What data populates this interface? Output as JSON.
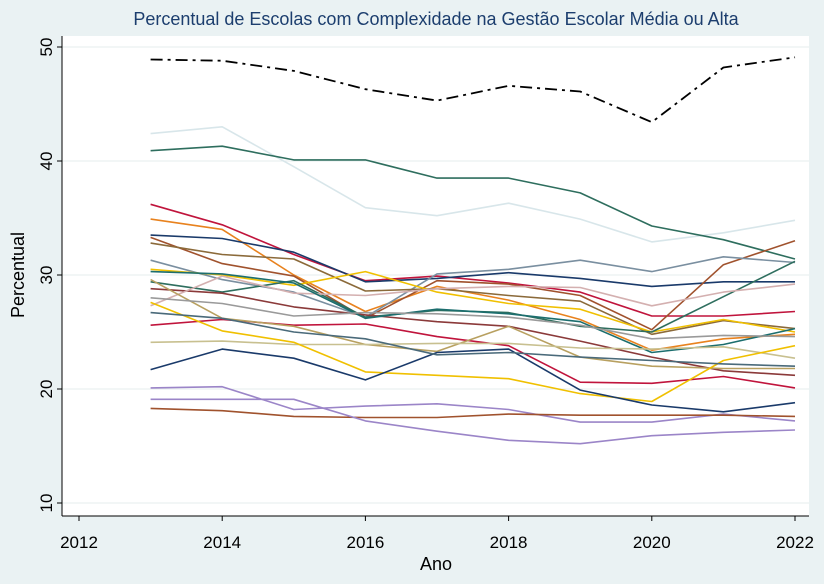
{
  "chart_data": {
    "type": "line",
    "title": "Percentual de Escolas com Complexidade na Gestão Escolar Média ou Alta",
    "xlabel": "Ano",
    "ylabel": "Percentual",
    "xlim": [
      2012,
      2022
    ],
    "ylim": [
      10,
      50
    ],
    "xticks": [
      2012,
      2014,
      2016,
      2018,
      2020,
      2022
    ],
    "yticks": [
      10,
      20,
      30,
      40,
      50
    ],
    "grid": true,
    "legend": "none",
    "x": [
      2013,
      2014,
      2015,
      2016,
      2017,
      2018,
      2019,
      2020,
      2021,
      2022
    ],
    "series": [
      {
        "color": "#000000",
        "dash": "12 5 3 5",
        "width": 1.8,
        "values": [
          48.9,
          48.8,
          47.9,
          46.3,
          45.3,
          46.6,
          46.1,
          43.4,
          48.2,
          49.1
        ]
      },
      {
        "color": "#d8e6ea",
        "values": [
          42.4,
          43.0,
          39.5,
          35.9,
          35.2,
          36.3,
          34.9,
          32.9,
          33.7,
          34.8
        ]
      },
      {
        "color": "#2e6e5e",
        "values": [
          40.9,
          41.3,
          40.1,
          40.1,
          38.5,
          38.5,
          37.2,
          34.3,
          33.1,
          31.4
        ]
      },
      {
        "color": "#c0143c",
        "values": [
          36.2,
          34.4,
          31.8,
          29.5,
          29.9,
          29.3,
          28.5,
          26.4,
          26.4,
          26.8
        ]
      },
      {
        "color": "#e8821e",
        "values": [
          34.9,
          34.0,
          30.0,
          26.8,
          29.0,
          27.8,
          26.1,
          23.4,
          24.4,
          24.8
        ]
      },
      {
        "color": "#1a3a6a",
        "values": [
          33.5,
          33.2,
          32.0,
          29.4,
          29.7,
          30.2,
          29.7,
          29.0,
          29.4,
          29.4
        ]
      },
      {
        "color": "#a0522d",
        "values": [
          33.3,
          31.0,
          29.9,
          26.2,
          29.5,
          29.2,
          28.2,
          25.2,
          30.9,
          33.0
        ]
      },
      {
        "color": "#7a8fa0",
        "values": [
          31.3,
          29.6,
          28.5,
          26.3,
          30.1,
          30.5,
          31.3,
          30.3,
          31.6,
          31.1
        ]
      },
      {
        "color": "#8b6a3a",
        "values": [
          32.8,
          31.8,
          31.4,
          28.6,
          28.8,
          28.2,
          27.7,
          24.8,
          26.0,
          25.3
        ]
      },
      {
        "color": "#f0c000",
        "values": [
          30.5,
          30.0,
          29.1,
          30.3,
          28.5,
          27.5,
          27.0,
          25.0,
          26.1,
          25.0
        ]
      },
      {
        "color": "#2e6e5e",
        "values": [
          29.4,
          28.5,
          29.5,
          26.3,
          26.9,
          26.7,
          25.5,
          25.0,
          28.1,
          31.2
        ]
      },
      {
        "color": "#8b3a3a",
        "values": [
          28.8,
          28.4,
          27.2,
          26.5,
          25.9,
          25.5,
          24.2,
          22.8,
          21.6,
          21.2
        ]
      },
      {
        "color": "#d4b0b0",
        "values": [
          27.3,
          29.9,
          28.4,
          28.2,
          28.8,
          29.0,
          28.9,
          27.3,
          28.5,
          29.2
        ]
      },
      {
        "color": "#1c6e6e",
        "values": [
          30.3,
          30.1,
          29.3,
          26.2,
          27.0,
          26.6,
          25.9,
          23.2,
          23.9,
          25.3
        ]
      },
      {
        "color": "#c0143c",
        "values": [
          25.6,
          26.1,
          25.6,
          25.7,
          24.6,
          23.8,
          20.6,
          20.5,
          21.1,
          20.1
        ]
      },
      {
        "color": "#b8a060",
        "values": [
          29.6,
          26.2,
          25.5,
          23.9,
          23.3,
          25.5,
          22.8,
          22.0,
          21.8,
          21.8
        ]
      },
      {
        "color": "#9a9a9a",
        "values": [
          28.0,
          27.5,
          26.4,
          26.7,
          26.6,
          26.3,
          25.6,
          24.4,
          24.7,
          24.6
        ]
      },
      {
        "color": "#c8c090",
        "values": [
          24.1,
          24.2,
          23.9,
          23.9,
          24.0,
          24.0,
          23.6,
          23.5,
          23.7,
          22.7
        ]
      },
      {
        "color": "#f0c000",
        "values": [
          27.6,
          25.1,
          24.1,
          21.5,
          21.2,
          20.9,
          19.6,
          18.9,
          22.5,
          23.8
        ]
      },
      {
        "color": "#1a3a6a",
        "values": [
          21.7,
          23.5,
          22.7,
          20.8,
          23.2,
          23.5,
          19.9,
          18.6,
          18.0,
          18.8
        ]
      },
      {
        "color": "#4a6a7a",
        "values": [
          26.7,
          26.2,
          25.0,
          24.4,
          23.0,
          23.2,
          22.8,
          22.5,
          22.2,
          22.0
        ]
      },
      {
        "color": "#9b85c8",
        "values": [
          20.1,
          20.2,
          18.2,
          18.5,
          18.7,
          18.2,
          17.1,
          17.1,
          17.8,
          17.2
        ]
      },
      {
        "color": "#a0522d",
        "values": [
          18.3,
          18.1,
          17.6,
          17.5,
          17.5,
          17.8,
          17.7,
          17.7,
          17.7,
          17.6
        ]
      },
      {
        "color": "#9b85c8",
        "values": [
          19.1,
          19.1,
          19.1,
          17.2,
          16.3,
          15.5,
          15.2,
          15.9,
          16.2,
          16.4
        ]
      }
    ]
  }
}
